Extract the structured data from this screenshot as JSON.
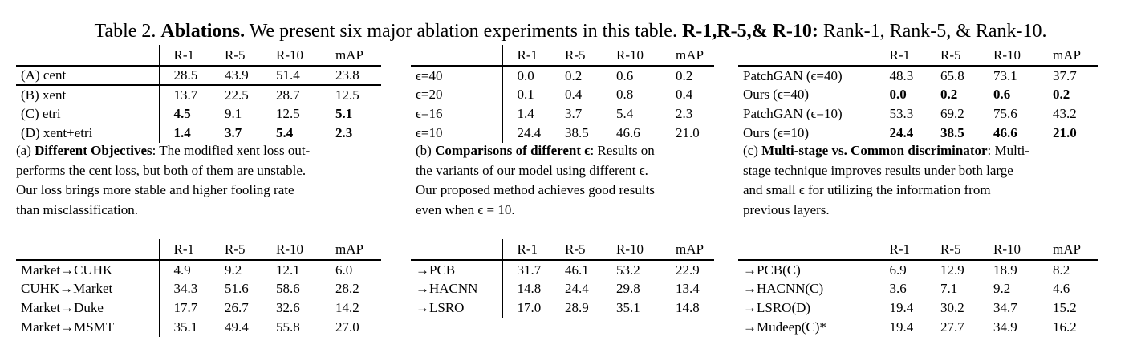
{
  "caption": {
    "prefix": "Table 2.",
    "title": "Ablations.",
    "body": "We present six major ablation experiments in this table.",
    "bold_keys": "R-1,R-5,& R-10:",
    "tail": "Rank-1, Rank-5, & Rank-10."
  },
  "tables": {
    "a": {
      "header": [
        "",
        "R-1",
        "R-5",
        "R-10",
        "mAP"
      ],
      "rows": [
        [
          "(A) cent",
          "28.5",
          "43.9",
          "51.4",
          "23.8"
        ],
        [
          "(B) xent",
          "13.7",
          "22.5",
          "28.7",
          "12.5"
        ],
        [
          "(C) etri",
          "4.5",
          "9.1",
          "12.5",
          "5.1"
        ],
        [
          "(D) xent+etri",
          "1.4",
          "3.7",
          "5.4",
          "2.3"
        ]
      ],
      "caption_label": "(a)",
      "caption_title": "Different Objectives",
      "caption_lines": [
        ": The modified xent loss out-",
        "performs the cent loss, but both of them are unstable.",
        "Our loss brings more stable and higher fooling rate",
        "than misclassification."
      ]
    },
    "b": {
      "header": [
        "",
        "R-1",
        "R-5",
        "R-10",
        "mAP"
      ],
      "rows": [
        [
          "ϵ=40",
          "0.0",
          "0.2",
          "0.6",
          "0.2"
        ],
        [
          "ϵ=20",
          "0.1",
          "0.4",
          "0.8",
          "0.4"
        ],
        [
          "ϵ=16",
          "1.4",
          "3.7",
          "5.4",
          "2.3"
        ],
        [
          "ϵ=10",
          "24.4",
          "38.5",
          "46.6",
          "21.0"
        ]
      ],
      "caption_label": "(b)",
      "caption_title": "Comparisons of different ϵ",
      "caption_lines": [
        ": Results on",
        "the variants of our model using different ϵ.",
        "Our proposed method achieves good results",
        "even when ϵ = 10."
      ]
    },
    "c": {
      "header": [
        "",
        "R-1",
        "R-5",
        "R-10",
        "mAP"
      ],
      "rows": [
        [
          "PatchGAN (ϵ=40)",
          "48.3",
          "65.8",
          "73.1",
          "37.7"
        ],
        [
          "Ours (ϵ=40)",
          "0.0",
          "0.2",
          "0.6",
          "0.2"
        ],
        [
          "PatchGAN (ϵ=10)",
          "53.3",
          "69.2",
          "75.6",
          "43.2"
        ],
        [
          "Ours (ϵ=10)",
          "24.4",
          "38.5",
          "46.6",
          "21.0"
        ]
      ],
      "caption_label": "(c)",
      "caption_title": "Multi-stage vs. Common discriminator",
      "caption_lines": [
        ": Multi-",
        "stage technique improves results under both large",
        "and small ϵ for utilizing the information from",
        "previous layers."
      ]
    },
    "d": {
      "header": [
        "",
        "R-1",
        "R-5",
        "R-10",
        "mAP"
      ],
      "rows": [
        [
          "Market→CUHK",
          "4.9",
          "9.2",
          "12.1",
          "6.0"
        ],
        [
          "CUHK→Market",
          "34.3",
          "51.6",
          "58.6",
          "28.2"
        ],
        [
          "Market→Duke",
          "17.7",
          "26.7",
          "32.6",
          "14.2"
        ],
        [
          "Market→MSMT",
          "35.1",
          "49.4",
          "55.8",
          "27.0"
        ]
      ]
    },
    "e": {
      "header": [
        "",
        "R-1",
        "R-5",
        "R-10",
        "mAP"
      ],
      "rows": [
        [
          "→PCB",
          "31.7",
          "46.1",
          "53.2",
          "22.9"
        ],
        [
          "→HACNN",
          "14.8",
          "24.4",
          "29.8",
          "13.4"
        ],
        [
          "→LSRO",
          "17.0",
          "28.9",
          "35.1",
          "14.8"
        ]
      ]
    },
    "f": {
      "header": [
        "",
        "R-1",
        "R-5",
        "R-10",
        "mAP"
      ],
      "rows": [
        [
          "→PCB(C)",
          "6.9",
          "12.9",
          "18.9",
          "8.2"
        ],
        [
          "→HACNN(C)",
          "3.6",
          "7.1",
          "9.2",
          "4.6"
        ],
        [
          "→LSRO(D)",
          "19.4",
          "30.2",
          "34.7",
          "15.2"
        ],
        [
          "→Mudeep(C)*",
          "19.4",
          "27.7",
          "34.9",
          "16.2"
        ]
      ]
    }
  }
}
